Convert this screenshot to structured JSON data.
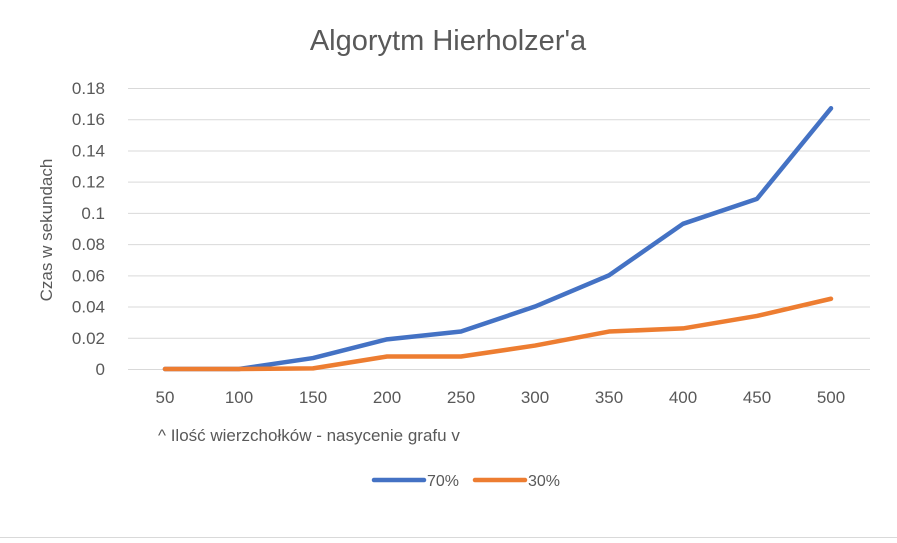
{
  "chart_data": {
    "type": "line",
    "title": "Algorytm Hierholzer'a",
    "xlabel": "^ Ilość wierzchołków  - nasycenie grafu v",
    "ylabel": "Czas w sekundach",
    "categories": [
      "50",
      "100",
      "150",
      "200",
      "250",
      "300",
      "350",
      "400",
      "450",
      "500"
    ],
    "ylim": [
      0,
      0.18
    ],
    "yticks": [
      "0",
      "0.02",
      "0.04",
      "0.06",
      "0.08",
      "0.1",
      "0.12",
      "0.14",
      "0.16",
      "0.18"
    ],
    "grid": true,
    "legend_position": "bottom",
    "series": [
      {
        "name": "70%",
        "color": "#4472c4",
        "values": [
          0.0,
          0.0,
          0.007,
          0.019,
          0.024,
          0.04,
          0.06,
          0.093,
          0.109,
          0.167
        ]
      },
      {
        "name": "30%",
        "color": "#ed7d31",
        "values": [
          0.0,
          0.0,
          0.0004,
          0.008,
          0.008,
          0.015,
          0.024,
          0.026,
          0.034,
          0.045
        ]
      }
    ]
  }
}
